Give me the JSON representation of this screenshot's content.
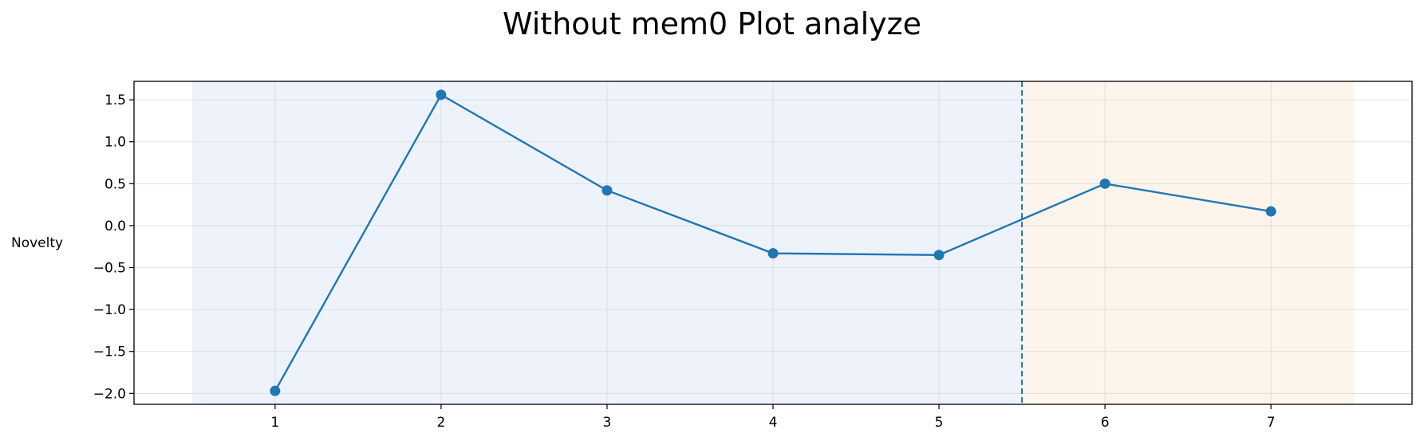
{
  "chart_data": {
    "type": "line",
    "title": "Without mem0 Plot analyze",
    "xlabel": "",
    "ylabel": "Novelty",
    "x": [
      1,
      2,
      3,
      4,
      5,
      6,
      7
    ],
    "series": [
      {
        "values": [
          -1.97,
          1.56,
          0.42,
          -0.33,
          -0.35,
          0.5,
          0.17
        ]
      }
    ],
    "xlim": [
      0.15,
      7.85
    ],
    "ylim": [
      -2.13,
      1.72
    ],
    "xticks": [
      1,
      2,
      3,
      4,
      5,
      6,
      7
    ],
    "yticks": [
      1.5,
      1.0,
      0.5,
      0.0,
      -0.5,
      -1.0,
      -1.5,
      -2.0
    ],
    "ytick_labels": [
      "1.5",
      "1.0",
      "0.5",
      "0.0",
      "−0.5",
      "−1.0",
      "−1.5",
      "−2.0"
    ],
    "grid": true,
    "vline": {
      "x": 5.5,
      "style": "dashed"
    },
    "shaded_regions": [
      {
        "x_start": 0.5,
        "x_end": 5.5,
        "color": "#eef3fb"
      },
      {
        "x_start": 5.5,
        "x_end": 7.5,
        "color": "#fdf5ec"
      }
    ],
    "colors": {
      "series": "#1f77b4",
      "grid": "#d9d9d9",
      "axes": "#000000"
    }
  }
}
